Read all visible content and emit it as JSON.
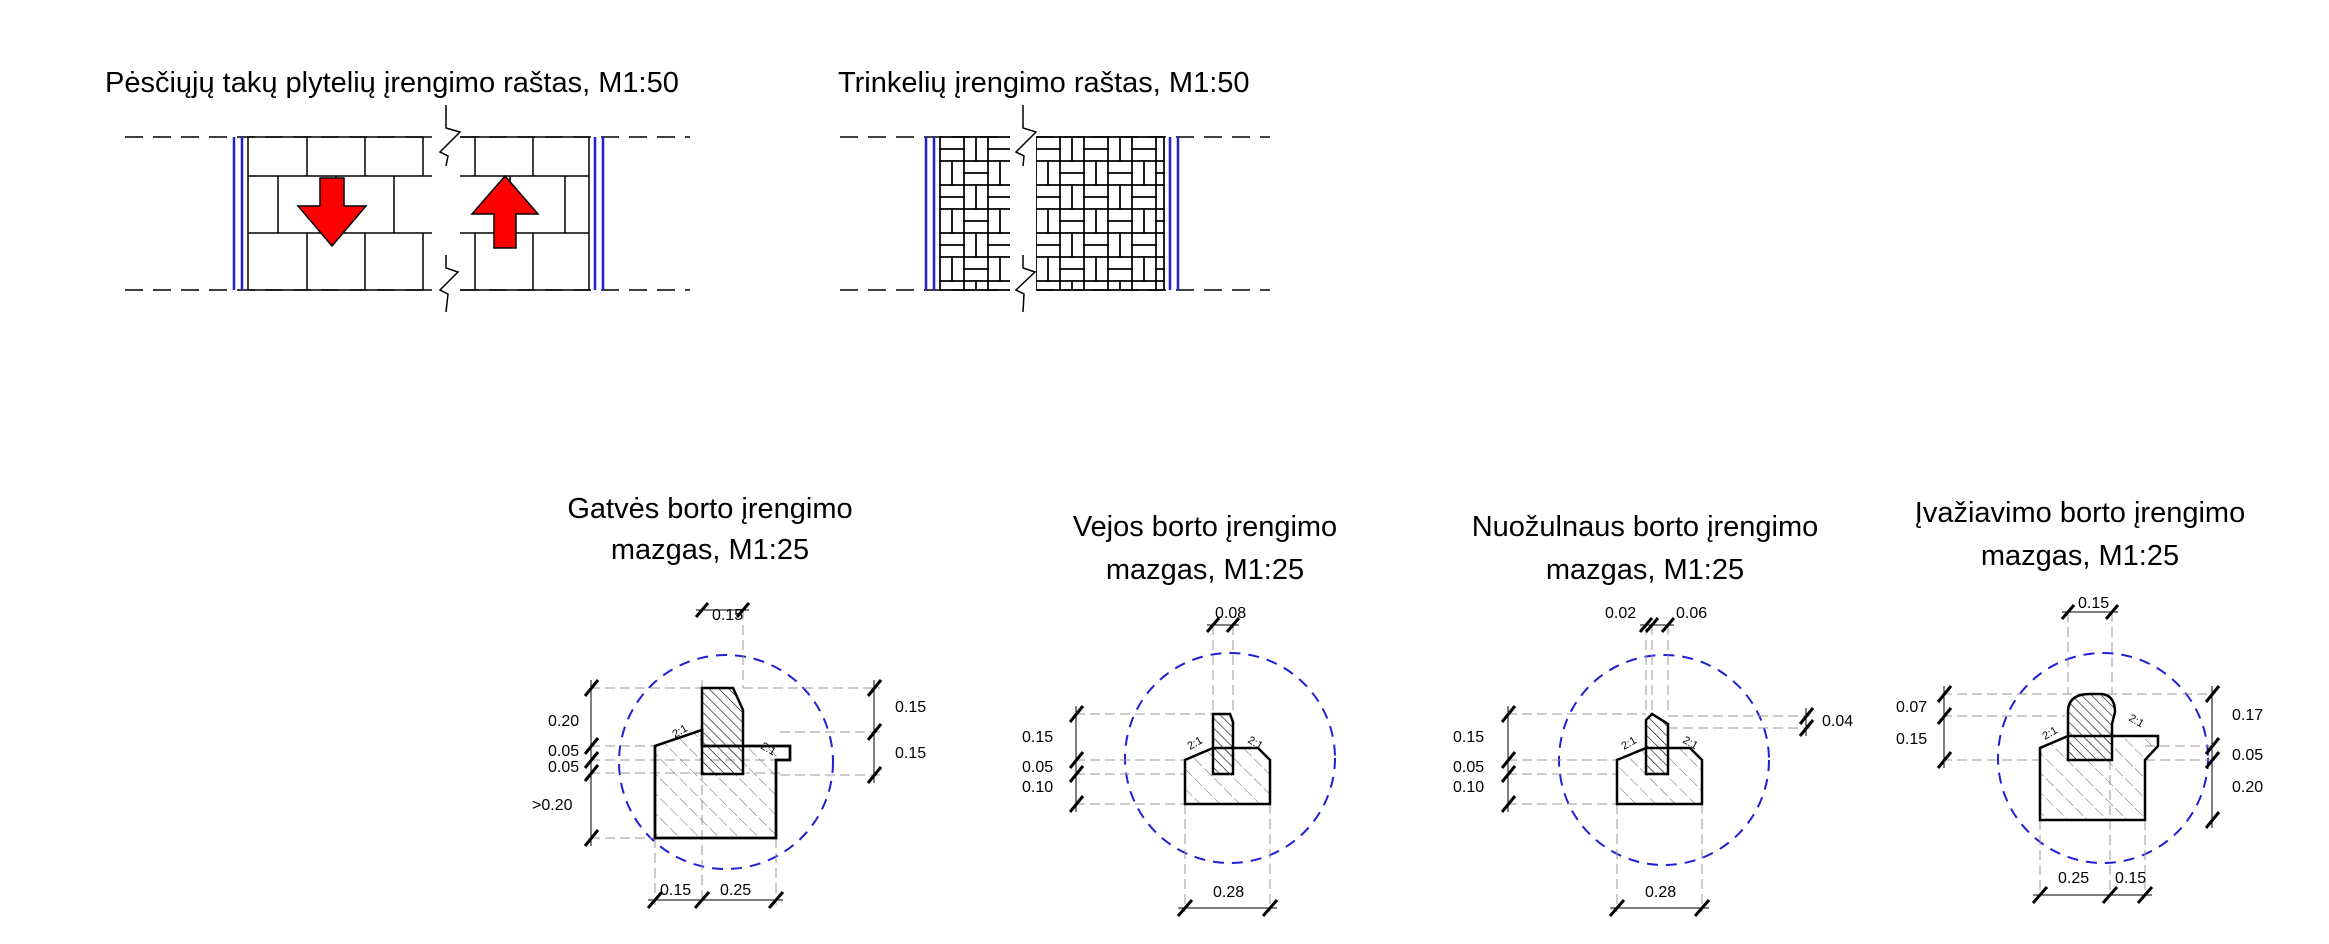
{
  "titles": {
    "paving_pattern": "Pėsčiųjų takų plytelių įrengimo raštas, M1:50",
    "block_pattern": "Trinkelių įrengimo raštas, M1:50",
    "street_curb_line1": "Gatvės borto įrengimo",
    "street_curb_line2": "mazgas, M1:25",
    "lawn_curb_line1": "Vejos borto įrengimo",
    "lawn_curb_line2": "mazgas, M1:25",
    "slope_curb_line1": "Nuožulnaus borto įrengimo",
    "slope_curb_line2": "mazgas, M1:25",
    "drive_curb_line1": "Įvažiavimo borto įrengimo",
    "drive_curb_line2": "mazgas, M1:25"
  },
  "dimensions": {
    "street": {
      "top": "0.15",
      "left1": "0.20",
      "left2": "0.05",
      "left3": "0.05",
      "left4": ">0.20",
      "right1": "0.15",
      "right2": "0.15",
      "bottom1": "0.15",
      "bottom2": "0.25",
      "slope_left": "2:1",
      "slope_right": "2:1"
    },
    "lawn": {
      "top": "0.08",
      "left1": "0.15",
      "left2": "0.05",
      "left3": "0.10",
      "bottom": "0.28",
      "slope_left": "2:1",
      "slope_right": "2:1"
    },
    "slope": {
      "top1": "0.02",
      "top2": "0.06",
      "right": "0.04",
      "left1": "0.15",
      "left2": "0.05",
      "left3": "0.10",
      "bottom": "0.28",
      "slope_left": "2:1",
      "slope_right": "2:1"
    },
    "drive": {
      "top": "0.15",
      "left1": "0.07",
      "left2": "0.15",
      "right1": "0.17",
      "right2": "0.05",
      "right3": "0.20",
      "bottom1": "0.25",
      "bottom2": "0.15",
      "slope_left": "2:1",
      "slope_right": "2:1"
    }
  },
  "colors": {
    "circle": "#1f1fd6",
    "arrow": "#ff0000",
    "edge": "#1f1fd6",
    "dim": "#9a9a9a"
  }
}
